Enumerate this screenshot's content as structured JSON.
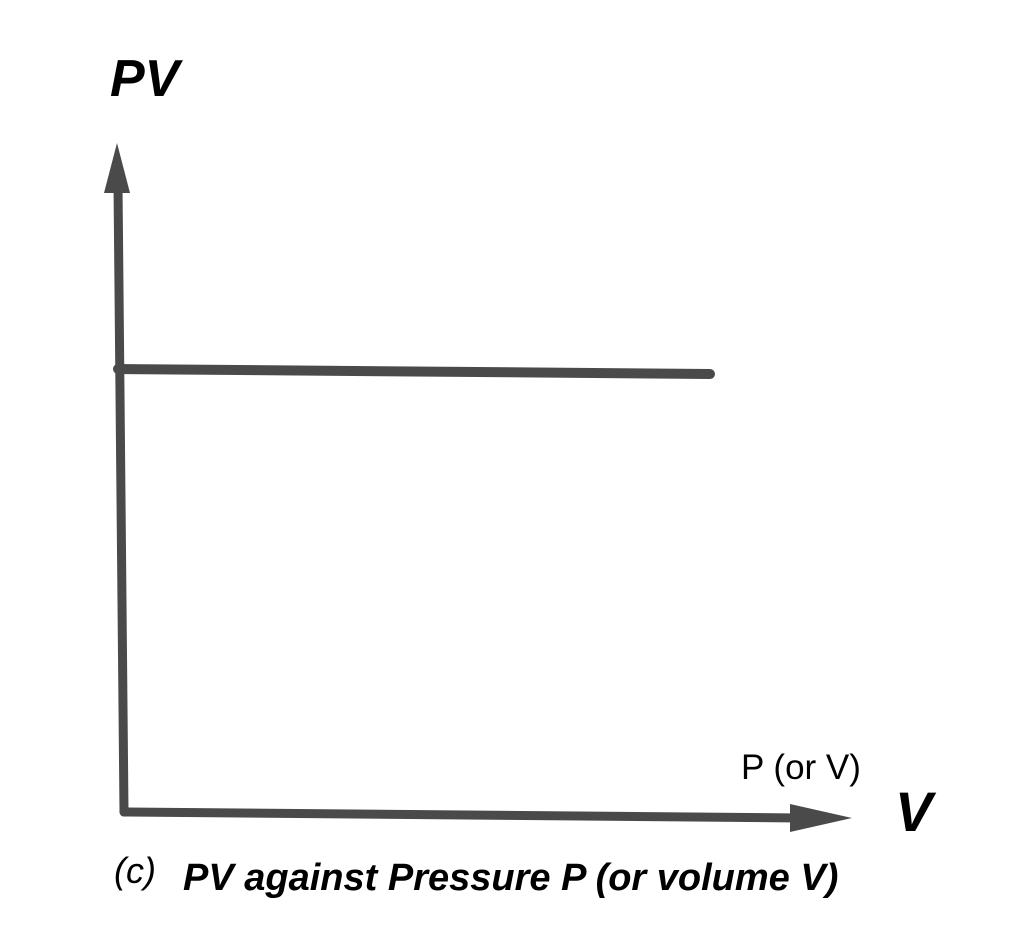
{
  "chart_data": {
    "type": "line",
    "ylabel": "PV",
    "xlabel": "V",
    "xlabel_note": "P (or V)",
    "caption_letter": "(c)",
    "caption": "PV against Pressure P (or volume V)",
    "grid": false,
    "tick_labels": false,
    "series": [
      {
        "x": [
          0,
          1
        ],
        "y": [
          1,
          1
        ]
      }
    ],
    "colors": {
      "axis": "#4a4a4a",
      "line": "#4a4a4a"
    }
  }
}
